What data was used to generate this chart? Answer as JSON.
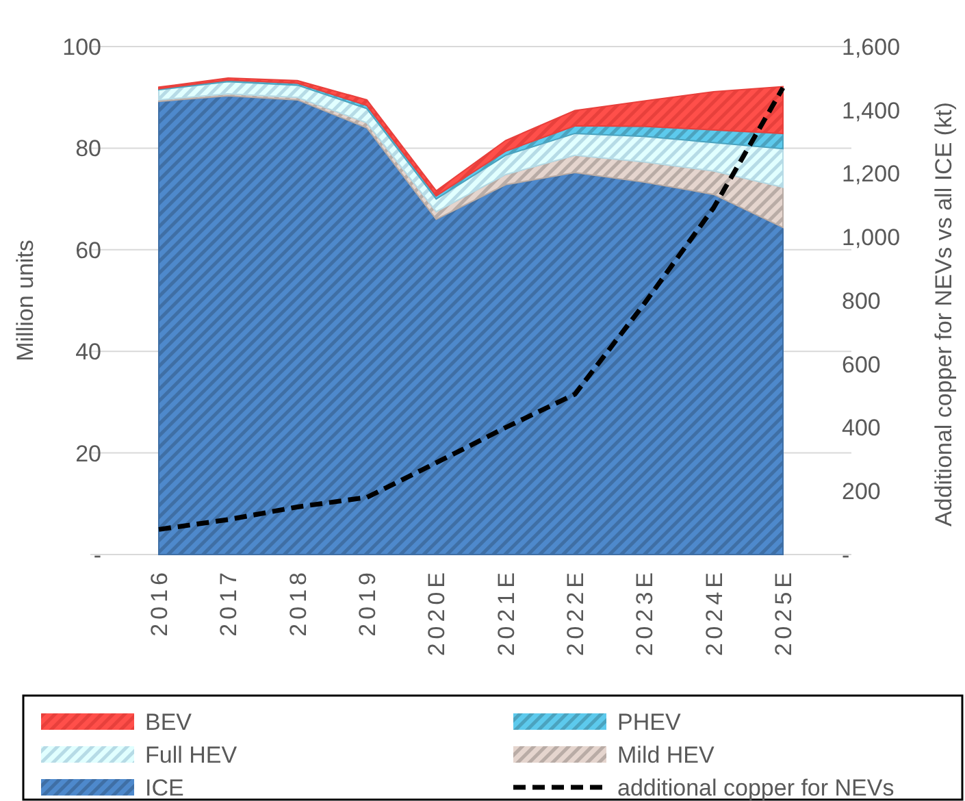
{
  "chart_data": {
    "type": "area",
    "stacked": true,
    "categories": [
      "2016",
      "2017",
      "2018",
      "2019",
      "2020E",
      "2021E",
      "2022E",
      "2023E",
      "2024E",
      "2025E"
    ],
    "ylabel": "Million units",
    "y2label": "Additional copper for NEVs vs all ICE (kt)",
    "ylim": [
      0,
      100
    ],
    "yticks": [
      {
        "value": 0,
        "label": "-"
      },
      20,
      40,
      60,
      80,
      100
    ],
    "y2lim": [
      0,
      1600
    ],
    "y2ticks": [
      {
        "value": 0,
        "label": "-"
      },
      200,
      400,
      600,
      800,
      {
        "value": 1000,
        "label": "1,000"
      },
      {
        "value": 1200,
        "label": "1,200"
      },
      {
        "value": 1400,
        "label": "1,400"
      },
      {
        "value": 1600,
        "label": "1,600"
      }
    ],
    "grid": "y",
    "legend": "bottom",
    "series": [
      {
        "name": "ICE",
        "color": "#3f6fa5",
        "values": [
          89.2,
          90.3,
          89.5,
          84,
          66,
          72.8,
          75.2,
          73.3,
          70.9,
          64.4
        ]
      },
      {
        "name": "Mild HEV",
        "color": "#b9aca6",
        "values": [
          0.3,
          0.4,
          0.5,
          1,
          1.5,
          2,
          3.4,
          4,
          4.6,
          7.9
        ]
      },
      {
        "name": "Full HEV",
        "color": "#b6dbe6",
        "values": [
          2,
          2.4,
          2.4,
          2.8,
          2.5,
          3.8,
          4.3,
          5,
          5.6,
          7.6
        ]
      },
      {
        "name": "PHEV",
        "color": "#4ba3bf",
        "values": [
          0.2,
          0.3,
          0.4,
          0.6,
          0.6,
          0.8,
          1.5,
          2,
          2.5,
          3
        ]
      },
      {
        "name": "BEV",
        "color": "#e8403c",
        "values": [
          0.3,
          0.4,
          0.5,
          1.1,
          1,
          2.1,
          3,
          5,
          7.5,
          9.2
        ]
      },
      {
        "name": "additional copper for NEVs",
        "type": "line",
        "axis": "y2",
        "color": "#000000",
        "line_style": "dashed",
        "values": [
          79,
          110,
          150,
          180,
          289,
          400,
          505,
          790,
          1092,
          1470
        ]
      }
    ]
  }
}
